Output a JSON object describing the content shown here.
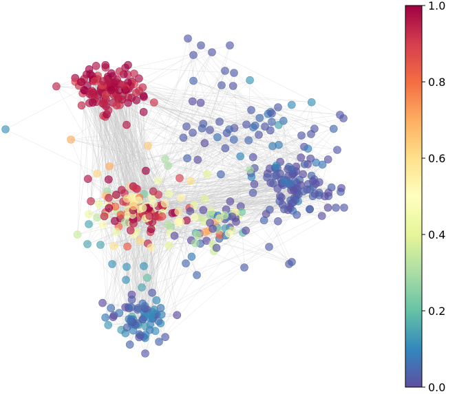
{
  "figure": {
    "type": "network-graph",
    "colormap": "Spectral",
    "colormap_stops": [
      "#5e4fa2",
      "#3288bd",
      "#66c2a5",
      "#abdda4",
      "#e6f598",
      "#ffffbf",
      "#fee08b",
      "#fdae61",
      "#f46d43",
      "#d53e4f",
      "#9e0142"
    ],
    "edge_color": "#c8c8c8",
    "node_alpha": 0.65
  },
  "colorbar": {
    "min": 0.0,
    "max": 1.0,
    "ticks": [
      {
        "value": 0.0,
        "label": "0.0"
      },
      {
        "value": 0.2,
        "label": "0.2"
      },
      {
        "value": 0.4,
        "label": "0.4"
      },
      {
        "value": 0.6,
        "label": "0.6"
      },
      {
        "value": 0.8,
        "label": "0.8"
      },
      {
        "value": 1.0,
        "label": "1.0"
      }
    ]
  },
  "clusters": [
    {
      "name": "top-left-community",
      "value": 0.97
    },
    {
      "name": "center-community",
      "value": 0.6
    },
    {
      "name": "right-community",
      "value": 0.02
    },
    {
      "name": "bottom-community",
      "value": 0.04
    },
    {
      "name": "upper-right-sparse",
      "value": 0.05
    },
    {
      "name": "center-right-mixed",
      "value": 0.18
    }
  ]
}
